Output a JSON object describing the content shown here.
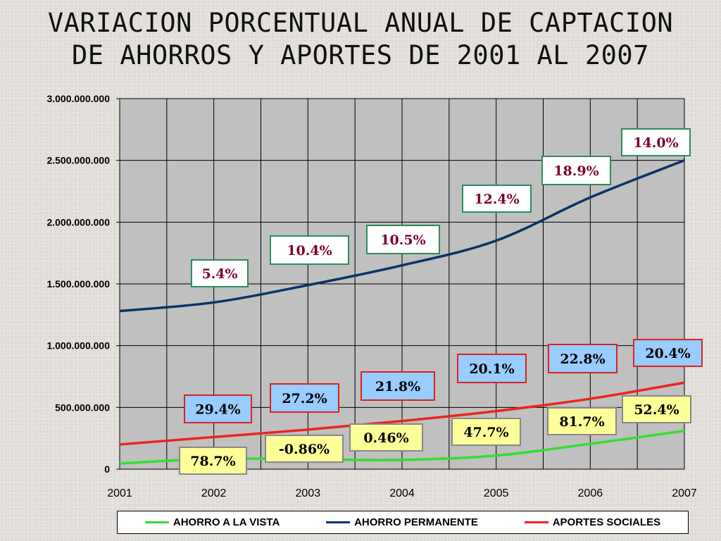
{
  "title_lines": [
    "VARIACION PORCENTUAL ANUAL DE CAPTACION",
    "DE AHORROS Y APORTES DE 2001 AL 2007"
  ],
  "chart_data": {
    "type": "line",
    "x": [
      2001,
      2002,
      2003,
      2004,
      2005,
      2006,
      2007
    ],
    "x_tick_labels": [
      "2001",
      "2002",
      "2003",
      "2004",
      "2005",
      "2006",
      "2007"
    ],
    "ylim": [
      0,
      3000000000
    ],
    "y_ticks": [
      0,
      500000000,
      1000000000,
      1500000000,
      2000000000,
      2500000000,
      3000000000
    ],
    "y_tick_labels": [
      "0",
      "500.000.000",
      "1.000.000.000",
      "1.500.000.000",
      "2.000.000.000",
      "2.500.000.000",
      "3.000.000.000"
    ],
    "grid": true,
    "plot_background": "#c0c0c0",
    "legend_position": "bottom",
    "series": [
      {
        "name": "AHORRO A LA VISTA",
        "color": "#33dd33",
        "values": [
          45000000,
          85000000,
          80000000,
          75000000,
          110000000,
          205000000,
          310000000
        ],
        "annotations": [
          "78.7%",
          "-0.86%",
          "0.46%",
          "47.7%",
          "81.7%",
          "52.4%"
        ],
        "annotation_fill": "#ffff99",
        "annotation_border": "#888888",
        "annotation_text_color": "#000000"
      },
      {
        "name": "AHORRO PERMANENTE",
        "color": "#0b3366",
        "values": [
          1280000000,
          1350000000,
          1490000000,
          1650000000,
          1850000000,
          2200000000,
          2500000000
        ],
        "annotations": [
          "5.4%",
          "10.4%",
          "10.5%",
          "12.4%",
          "18.9%",
          "14.0%"
        ],
        "annotation_fill": "#ffffff",
        "annotation_border": "#2e8b57",
        "annotation_text_color": "#7a0030"
      },
      {
        "name": "APORTES SOCIALES",
        "color": "#e8261e",
        "values": [
          200000000,
          260000000,
          320000000,
          390000000,
          470000000,
          570000000,
          700000000
        ],
        "annotations": [
          "29.4%",
          "27.2%",
          "21.8%",
          "20.1%",
          "22.8%",
          "20.4%"
        ],
        "annotation_fill": "#99ccff",
        "annotation_border": "#dd2222",
        "annotation_text_color": "#000000"
      }
    ]
  }
}
